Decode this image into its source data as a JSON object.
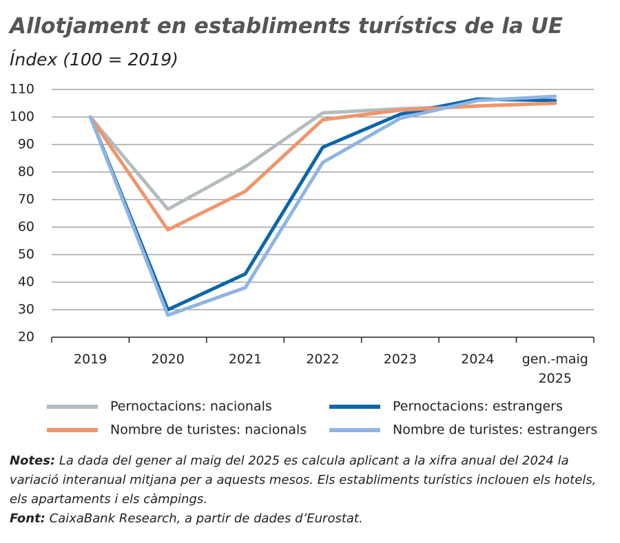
{
  "chart_data": {
    "type": "line",
    "title": "Allotjament en establiments turístics de la UE",
    "subtitle": "Índex (100 = 2019)",
    "categories": [
      "2019",
      "2020",
      "2021",
      "2022",
      "2023",
      "2024",
      "gen.-maig 2025"
    ],
    "series": [
      {
        "name": "Pernoctacions: nacionals",
        "color": "#b3bcbe",
        "values": [
          100,
          66.5,
          82,
          101.5,
          103,
          104,
          105
        ]
      },
      {
        "name": "Pernoctacions: estrangers",
        "color": "#0a66ad",
        "values": [
          100,
          30,
          43,
          89,
          101,
          106.5,
          106
        ]
      },
      {
        "name": "Nombre de turistes: nacionals",
        "color": "#f0956b",
        "values": [
          100,
          59,
          73,
          99,
          102.5,
          104,
          105
        ]
      },
      {
        "name": "Nombre de turistes: estrangers",
        "color": "#8fb4e4",
        "values": [
          100,
          28,
          38,
          83.5,
          99.5,
          106,
          107.5
        ]
      }
    ],
    "ylim": [
      20,
      110
    ],
    "yticks": [
      20,
      30,
      40,
      50,
      60,
      70,
      80,
      90,
      100,
      110
    ],
    "grid": true,
    "notes": {
      "label": "Notes:",
      "text": "La dada del gener al maig del 2025 es calcula aplicant a la xifra anual del  2024 la variació interanual mitjana per a aquests mesos. Els establiments turístics inclouen els hotels, els apartaments i els càmpings."
    },
    "source": {
      "label": "Font:",
      "text": "CaixaBank Research, a partir de dades d’Eurostat."
    }
  }
}
